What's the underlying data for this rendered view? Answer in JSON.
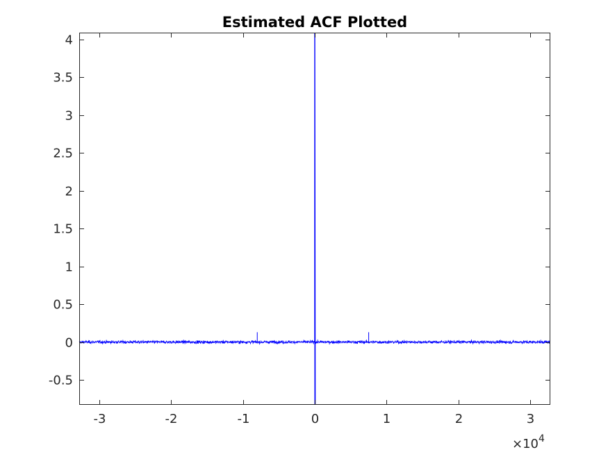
{
  "chart_data": {
    "type": "line",
    "title": "Estimated ACF Plotted",
    "xlabel": "",
    "ylabel": "",
    "xlim": [
      -32767,
      32767
    ],
    "ylim": [
      -0.83,
      4.09
    ],
    "x_exponent_label": "×10",
    "x_exponent_power": "4",
    "x_ticks": [
      -30000,
      -20000,
      -10000,
      0,
      10000,
      20000,
      30000
    ],
    "x_tick_labels": [
      "-3",
      "-2",
      "-1",
      "0",
      "1",
      "2",
      "3"
    ],
    "y_ticks": [
      -0.5,
      0,
      0.5,
      1,
      1.5,
      2,
      2.5,
      3,
      3.5,
      4
    ],
    "y_tick_labels": [
      "-0.5",
      "0",
      "0.5",
      "1",
      "1.5",
      "2",
      "2.5",
      "3",
      "3.5",
      "4"
    ],
    "grid": false,
    "series": [
      {
        "color": "#0000ff",
        "peak": {
          "x": 0,
          "y": 4.09
        },
        "noise_band": [
          -0.12,
          0.13
        ],
        "notable_points": [
          {
            "x": 0,
            "y": 4.09
          },
          {
            "x": 0,
            "y": 3.22
          },
          {
            "x": 0,
            "y": 2.36
          },
          {
            "x": 0,
            "y": -0.83
          },
          {
            "x": -8000,
            "y": 0.13
          },
          {
            "x": 7500,
            "y": 0.13
          }
        ]
      }
    ]
  }
}
